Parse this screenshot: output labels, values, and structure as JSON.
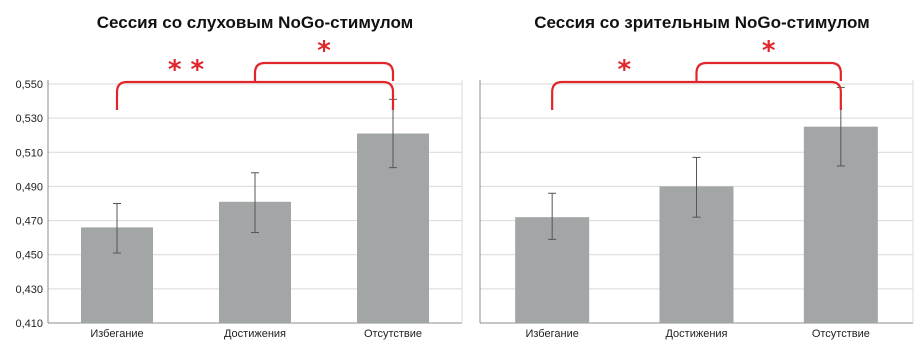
{
  "chart_data": [
    {
      "type": "bar",
      "title": "Сессия со слуховым NoGo-стимулом",
      "categories": [
        "Избегание",
        "Достижения",
        "Отсутствие"
      ],
      "values": [
        0.466,
        0.481,
        0.521
      ],
      "error_low": [
        0.451,
        0.463,
        0.501
      ],
      "error_high": [
        0.48,
        0.498,
        0.541
      ],
      "ylim": [
        0.41,
        0.55
      ],
      "yticks": [
        "0,410",
        "0,430",
        "0,450",
        "0,470",
        "0,490",
        "0,510",
        "0,530",
        "0,550"
      ],
      "grid": true,
      "significance": [
        {
          "from": 0,
          "to": 2,
          "label": "* *"
        },
        {
          "from": 1,
          "to": 2,
          "label": "*"
        }
      ]
    },
    {
      "type": "bar",
      "title": "Сессия со зрительным NoGo-стимулом",
      "categories": [
        "Избегание",
        "Достижения",
        "Отсутствие"
      ],
      "values": [
        0.472,
        0.49,
        0.525
      ],
      "error_low": [
        0.459,
        0.472,
        0.502
      ],
      "error_high": [
        0.486,
        0.507,
        0.548
      ],
      "ylim": [
        0.41,
        0.55
      ],
      "yticks": [],
      "grid": true,
      "significance": [
        {
          "from": 0,
          "to": 2,
          "label": "*"
        },
        {
          "from": 1,
          "to": 2,
          "label": "*"
        }
      ]
    }
  ],
  "colors": {
    "bar": "#a3a6a6",
    "error_bar": "#555555",
    "grid": "#d9d9d9",
    "bracket": "#e0262b",
    "axis": "#8c8c8c"
  }
}
